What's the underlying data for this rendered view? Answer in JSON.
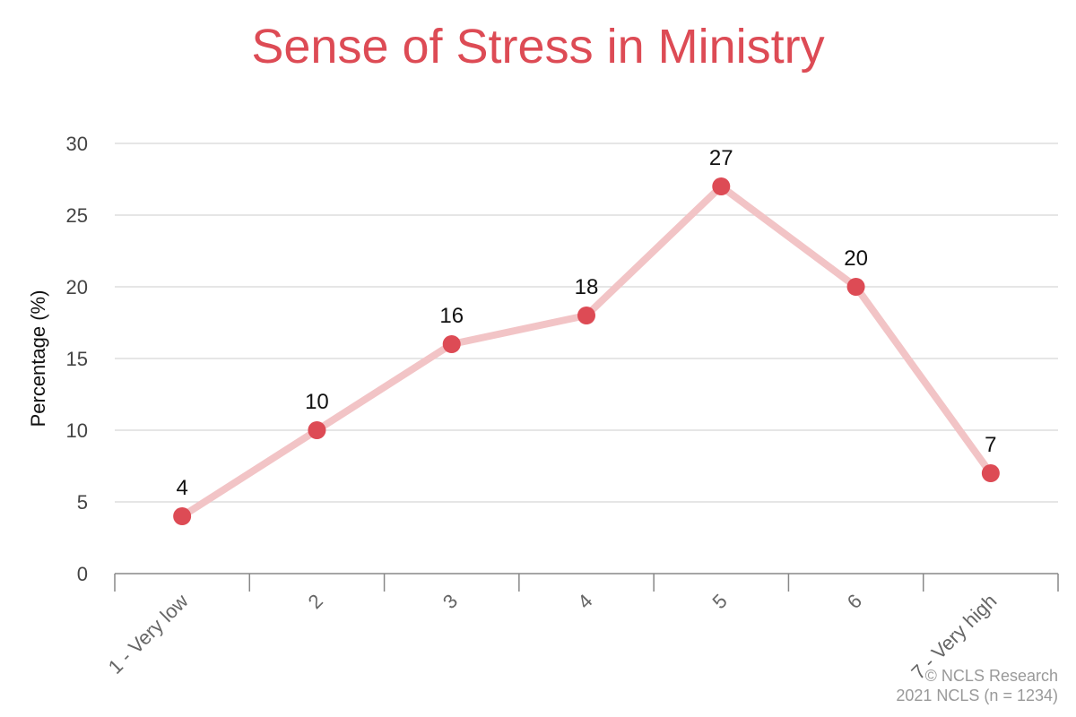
{
  "chart_data": {
    "type": "line",
    "title": "Sense of Stress in Ministry",
    "xlabel": "",
    "ylabel": "Percentage (%)",
    "categories": [
      "1 - Very low",
      "2",
      "3",
      "4",
      "5",
      "6",
      "7 - Very high"
    ],
    "series": [
      {
        "values": [
          4,
          10,
          16,
          18,
          27,
          20,
          7
        ]
      }
    ],
    "ylim": [
      0,
      30
    ],
    "yticks": [
      0,
      5,
      10,
      15,
      20,
      25,
      30
    ],
    "data_labels": [
      "4",
      "10",
      "16",
      "18",
      "27",
      "20",
      "7"
    ],
    "grid": true,
    "legend": "none",
    "colors": {
      "title": "#dd4b55",
      "marker": "#dd4b55",
      "line": "#f2c4c6",
      "grid": "#dddddd",
      "axis": "#888888"
    }
  },
  "source": {
    "line1": "© NCLS Research",
    "line2": "2021 NCLS (n = 1234)"
  }
}
